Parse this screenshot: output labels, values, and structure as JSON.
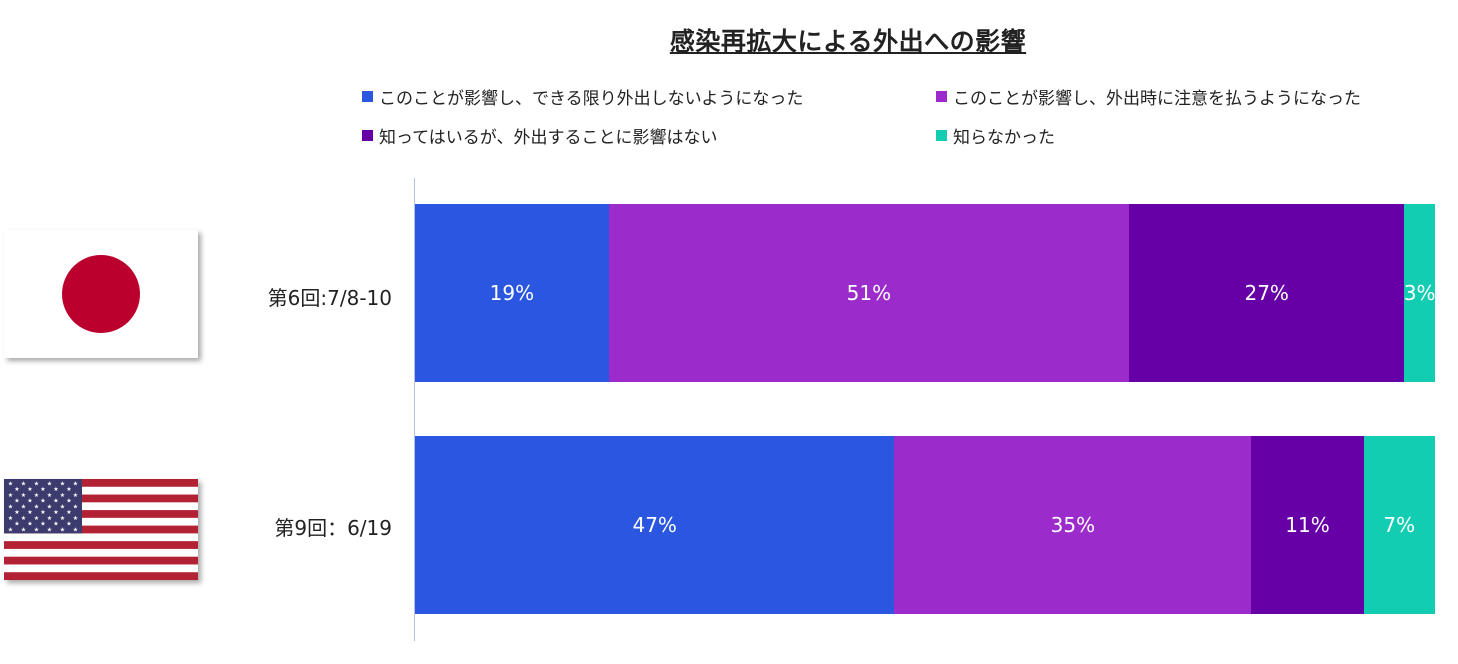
{
  "title": "感染再拡大による外出への影響",
  "legend": [
    {
      "label": "このことが影響し、できる限り外出しないようになった",
      "color": "#2a56e0"
    },
    {
      "label": "このことが影響し、外出時に注意を払うようになった",
      "color": "#9c2bcb"
    },
    {
      "label": "知ってはいるが、外出することに影響はない",
      "color": "#6600a6"
    },
    {
      "label": "知らなかった",
      "color": "#12cdb2"
    }
  ],
  "flags": [
    {
      "country": "Japan",
      "icon": "japan-flag-icon"
    },
    {
      "country": "United States",
      "icon": "us-flag-icon"
    }
  ],
  "chart_data": {
    "type": "bar",
    "orientation": "horizontal",
    "stacked": "100%",
    "title": "感染再拡大による外出への影響",
    "categories": [
      "第6回:7/8-10",
      "第9回：6/19"
    ],
    "series": [
      {
        "name": "このことが影響し、できる限り外出しないようになった",
        "values": [
          19,
          47
        ],
        "labels": [
          "19%",
          "47%"
        ],
        "color": "#2a56e0"
      },
      {
        "name": "このことが影響し、外出時に注意を払うようになった",
        "values": [
          51,
          35
        ],
        "labels": [
          "51%",
          "35%"
        ],
        "color": "#9c2bcb"
      },
      {
        "name": "知ってはいるが、外出することに影響はない",
        "values": [
          27,
          11
        ],
        "labels": [
          "27%",
          "11%"
        ],
        "color": "#6600a6"
      },
      {
        "name": "知らなかった",
        "values": [
          3,
          7
        ],
        "labels": [
          "3%",
          "7%"
        ],
        "color": "#12cdb2"
      }
    ],
    "unit": "%",
    "legend_position": "top",
    "grid": false
  }
}
